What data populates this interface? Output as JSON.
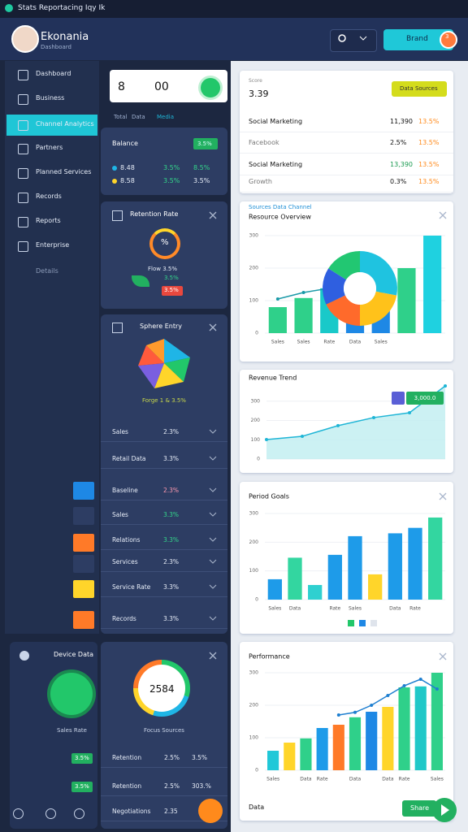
{
  "window": {
    "title": "Stats Reportacing Iqy Ik"
  },
  "header": {
    "name": "Ekonania",
    "subtitle": "Dashboard",
    "button": "Brand",
    "badge": "3"
  },
  "sidebar": {
    "items": [
      "Dashboard",
      "Business",
      "Channel Analytics",
      "Partners",
      "Planned Services",
      "Records",
      "Reports",
      "Enterprise",
      "Details"
    ],
    "active": 2
  },
  "summary": {
    "left": "8",
    "right": "00",
    "tabs": [
      "Total",
      "Data",
      "Media"
    ]
  },
  "balance": {
    "title": "Balance",
    "badge": "3.5%",
    "rows": [
      [
        "8.48",
        "3.5%",
        "8.5%"
      ],
      [
        "8.58",
        "3.5%",
        "3.5%"
      ]
    ]
  },
  "retention": {
    "title": "Retention Rate",
    "center": "%",
    "caption": "Flow 3.5%",
    "tags": [
      "3.5%",
      "3.5%"
    ]
  },
  "sphere": {
    "title": "Sphere Entry",
    "caption": "Forge 1 & 3.5%",
    "rows": [
      [
        "Sales",
        "2.3%"
      ],
      [
        "Retail Data",
        "3.3%"
      ],
      [
        "Baseline",
        "2.3%"
      ],
      [
        "Sales",
        "3.3%"
      ],
      [
        "Relations",
        "3.3%"
      ],
      [
        "Services",
        "2.3%"
      ],
      [
        "Service Rate",
        "3.3%"
      ],
      [
        "Records",
        "3.3%"
      ]
    ]
  },
  "device": {
    "title": "Device Data",
    "caption": "Sales Rate",
    "tags": [
      "3.5%",
      "3.5%"
    ]
  },
  "focus": {
    "center": "2584",
    "caption": "Focus Sources",
    "rows": [
      [
        "Retention",
        "2.5%",
        "3.5%"
      ],
      [
        "Retention",
        "2.5%",
        "303.%"
      ],
      [
        "Negotiations",
        "2.35"
      ]
    ]
  },
  "stats": {
    "label": "Score",
    "value": "3.39",
    "button": "Data Sources",
    "rows": [
      [
        "Social Marketing",
        "11,390",
        "13.5%"
      ],
      [
        "Facebook",
        "2.5%",
        "13.5%"
      ],
      [
        "Social Marketing",
        "13,390",
        "13.5%"
      ],
      [
        "Growth",
        "0.3%",
        "13.5%"
      ]
    ]
  },
  "footer": {
    "label": "Data",
    "button": "Share"
  },
  "chart_data": [
    {
      "type": "bar",
      "title": "Resource Overview",
      "subtitle": "Sources Data Channel",
      "categories": [
        "Sales",
        "Sales",
        "Rate",
        "Data",
        "Sales",
        null,
        null
      ],
      "series": [
        {
          "type": "bar",
          "colors": [
            "#2fd08a",
            "#2fd08a",
            "#19c9c9",
            "#1e88e5",
            "#1e88e5",
            "#2fd08a",
            "#1fd1e0"
          ],
          "values": [
            80,
            108,
            138,
            50,
            100,
            200,
            300
          ]
        },
        {
          "type": "line",
          "color": "#1b9aa8",
          "values": [
            105,
            125,
            138,
            112,
            125,
            null,
            null
          ]
        }
      ],
      "ylim": [
        0,
        300
      ],
      "yticks": [
        0,
        100,
        200,
        300
      ]
    },
    {
      "type": "pie",
      "values": [
        28,
        22,
        18,
        16,
        16
      ],
      "colors": [
        "#1fc3e0",
        "#ffc21a",
        "#ff6a2b",
        "#2f5fe0",
        "#22c772"
      ]
    },
    {
      "type": "line",
      "title": "Revenue Trend",
      "categories": [
        null,
        null,
        null,
        null,
        null,
        null
      ],
      "series": [
        {
          "color": "#1fb5d6",
          "values": [
            101,
            118,
            173,
            215,
            240,
            379
          ]
        }
      ],
      "area": true,
      "annotation": "3,000.0",
      "ylim": [
        0,
        400
      ],
      "yticks": [
        0,
        100,
        200,
        300
      ]
    },
    {
      "type": "bar",
      "title": "Period Goals",
      "categories": [
        "Sales",
        "Data",
        null,
        "Rate",
        "Sales",
        null,
        "Data",
        "Rate",
        null
      ],
      "series": [
        {
          "type": "bar",
          "colors": [
            "#1e9be9",
            "#33d6a0",
            "#2fd0d0",
            "#1e9be9",
            "#1e9be9",
            "#ffd52a",
            "#1e9be9",
            "#1e9be9",
            "#33d6a0"
          ],
          "values": [
            71,
            146,
            51,
            156,
            221,
            88,
            231,
            250,
            286
          ]
        }
      ],
      "ylim": [
        0,
        300
      ],
      "yticks": [
        0,
        100,
        200,
        300
      ]
    },
    {
      "type": "bar",
      "title": "Performance",
      "categories": [
        "Sales",
        null,
        "Data",
        "Rate",
        null,
        "Data",
        null,
        "Data",
        "Rate",
        null,
        "Sales"
      ],
      "series": [
        {
          "type": "bar",
          "colors": [
            "#20c8d8",
            "#ffd52a",
            "#2fd08a",
            "#1e9be9",
            "#ff7a28",
            "#2fd08a",
            "#1e88e5",
            "#ffd52a",
            "#2fd08a",
            "#20c8c8",
            "#2fd08a"
          ],
          "values": [
            60,
            85,
            98,
            130,
            140,
            163,
            180,
            195,
            255,
            258,
            300
          ]
        },
        {
          "type": "line",
          "color": "#1e7fd0",
          "values": [
            null,
            null,
            null,
            null,
            170,
            178,
            200,
            230,
            260,
            280,
            250
          ]
        }
      ],
      "ylim": [
        0,
        300
      ],
      "yticks": [
        0,
        100,
        200,
        300
      ]
    }
  ]
}
